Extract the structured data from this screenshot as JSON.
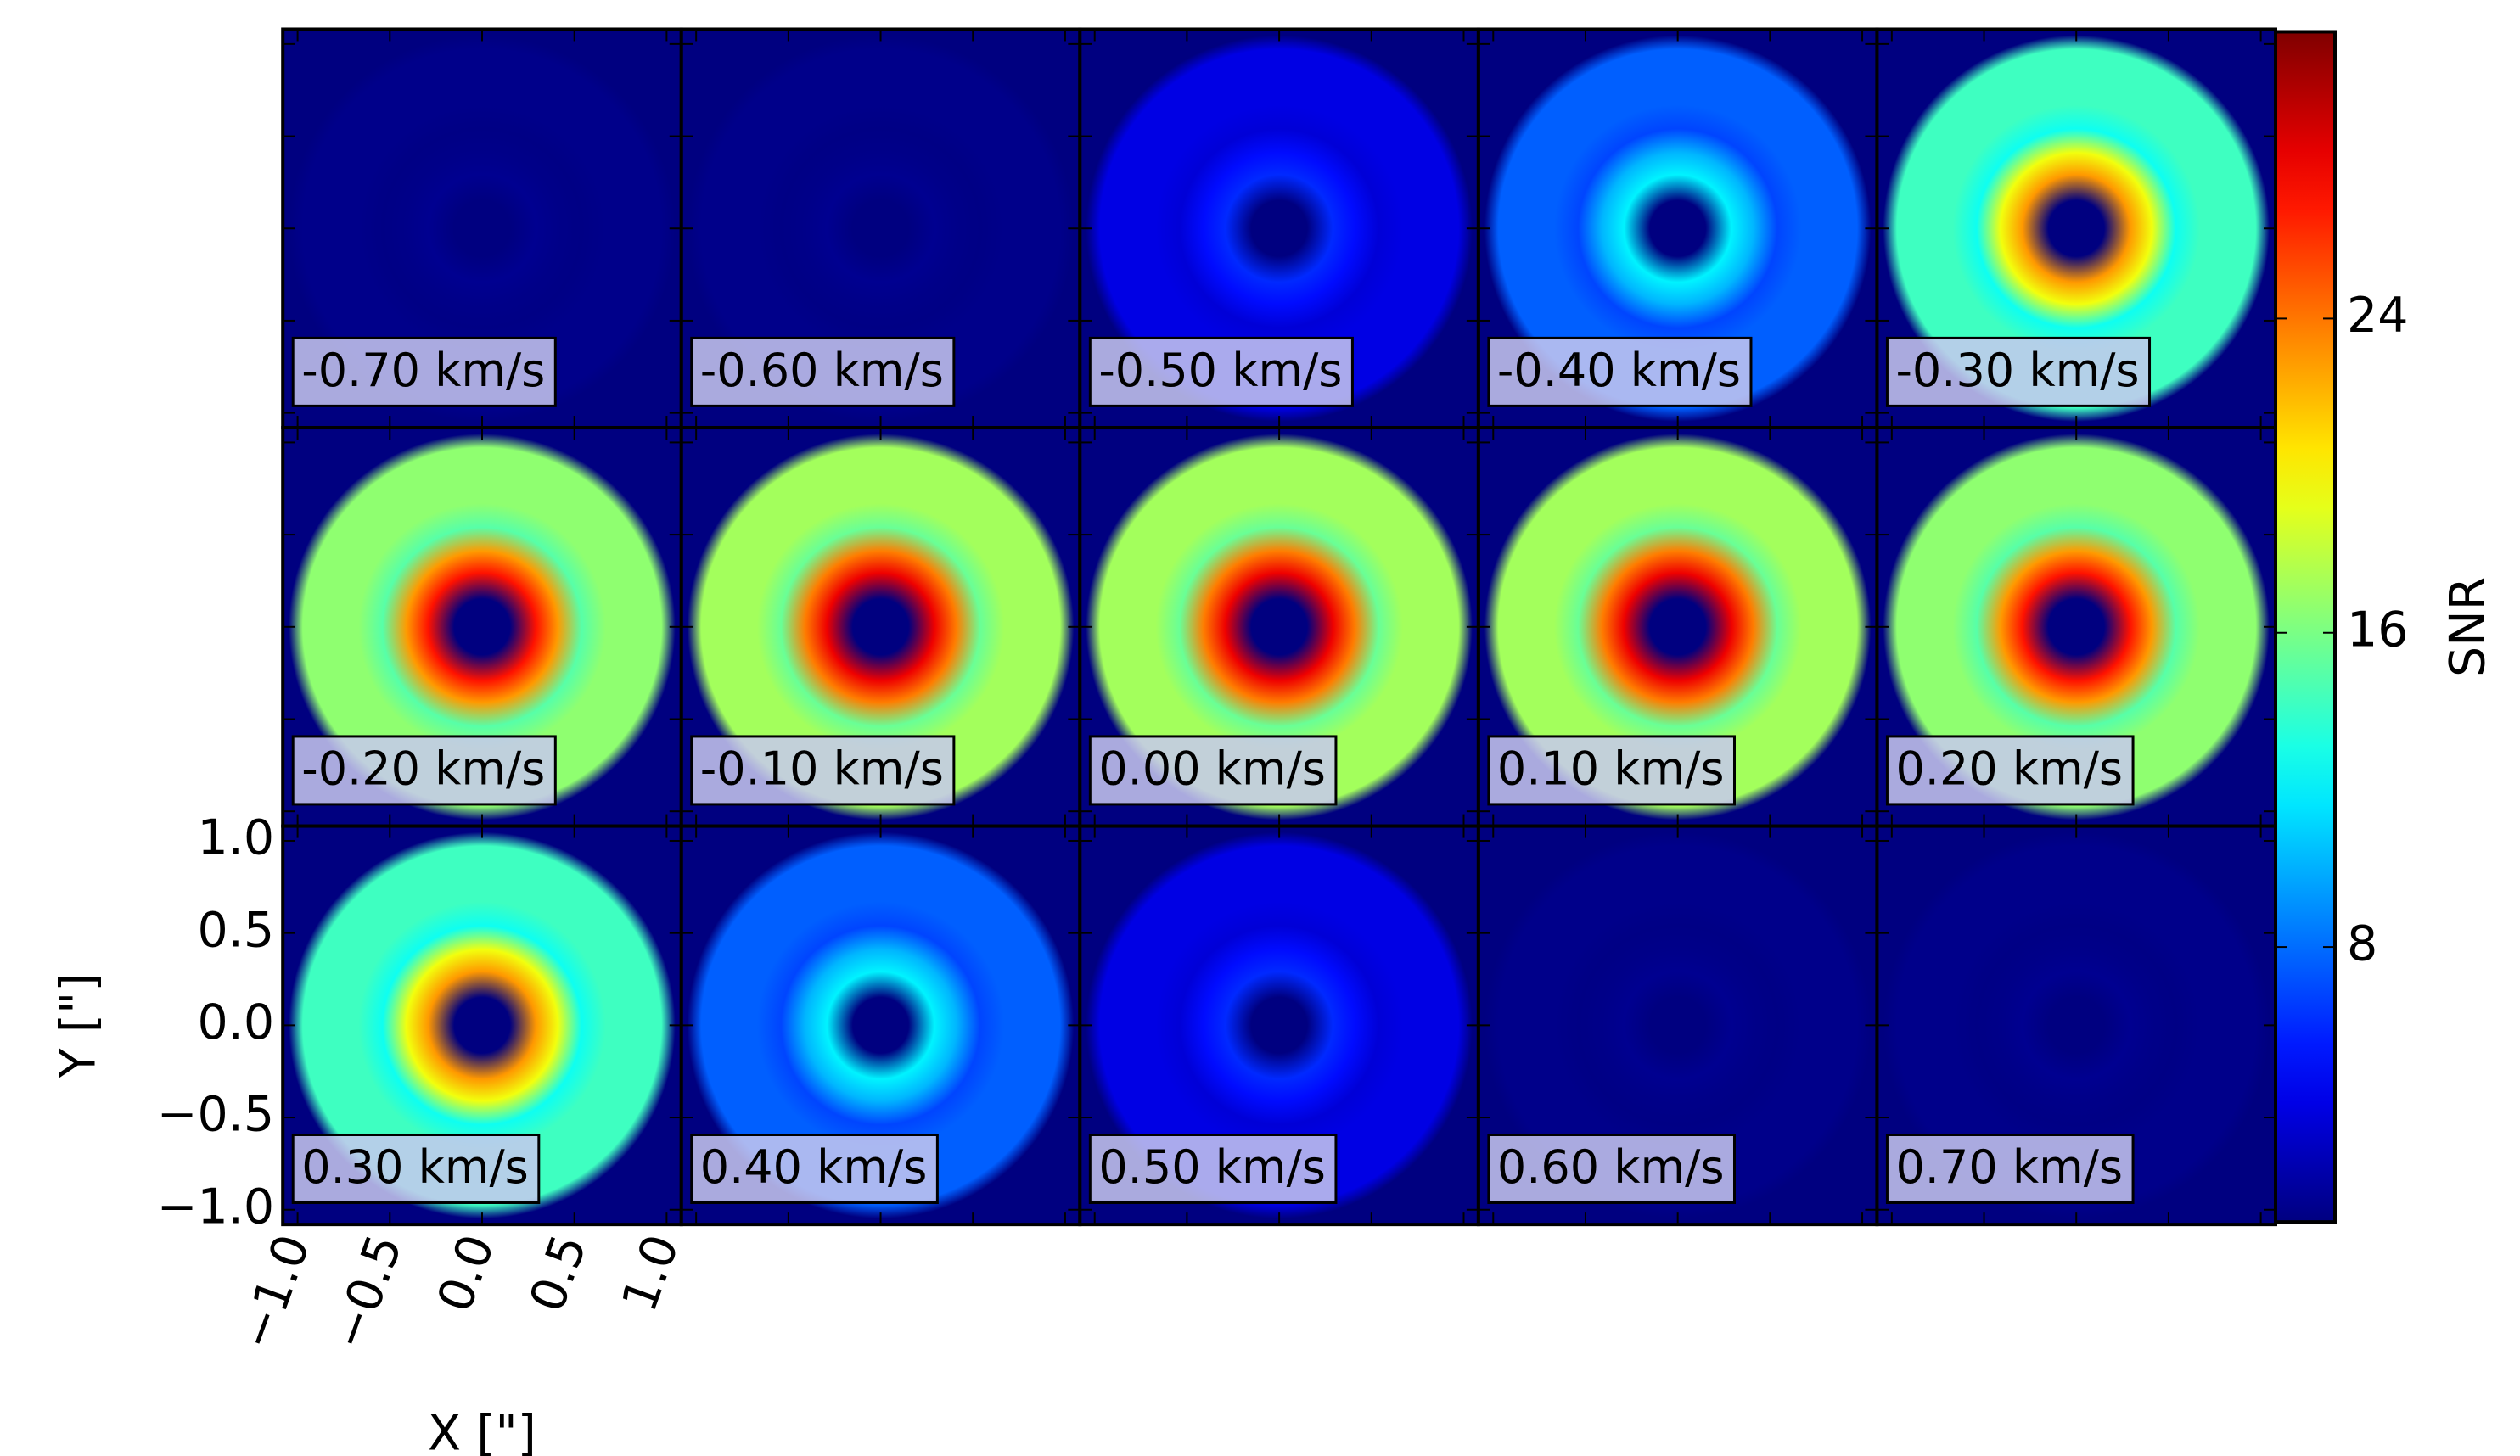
{
  "chart_data": {
    "type": "channel_maps",
    "columns": 5,
    "colormap": "jet",
    "panels": [
      {
        "label": "-0.70 km/s",
        "peak": 1.5
      },
      {
        "label": "-0.60 km/s",
        "peak": 1.5
      },
      {
        "label": "-0.50 km/s",
        "peak": 6
      },
      {
        "label": "-0.40 km/s",
        "peak": 12
      },
      {
        "label": "-0.30 km/s",
        "peak": 23
      },
      {
        "label": "-0.20 km/s",
        "peak": 27
      },
      {
        "label": "-0.10 km/s",
        "peak": 28
      },
      {
        "label": "0.00 km/s",
        "peak": 28
      },
      {
        "label": "0.10 km/s",
        "peak": 28
      },
      {
        "label": "0.20 km/s",
        "peak": 27
      },
      {
        "label": "0.30 km/s",
        "peak": 23
      },
      {
        "label": "0.40 km/s",
        "peak": 12
      },
      {
        "label": "0.50 km/s",
        "peak": 6
      },
      {
        "label": "0.60 km/s",
        "peak": 1.5
      },
      {
        "label": "0.70 km/s",
        "peak": 1.5
      }
    ],
    "x_label": "X [\"]",
    "y_label": "Y [\"]",
    "xlim": [
      -1.08,
      1.08
    ],
    "ylim": [
      -1.08,
      1.08
    ],
    "xticks": [
      {
        "value": -1,
        "label": "−1.0"
      },
      {
        "value": -0.5,
        "label": "−0.5"
      },
      {
        "value": 0,
        "label": "0.0"
      },
      0.5,
      {
        "value": 1,
        "label": "1.0"
      }
    ],
    "yticks": [
      {
        "value": -1,
        "label": "−1.0"
      },
      {
        "value": -0.5,
        "label": "−0.5"
      },
      {
        "value": 0,
        "label": "0.0"
      },
      0.5,
      {
        "value": 1,
        "label": "1.0"
      }
    ],
    "colorbar": {
      "label": "SNR",
      "lim": [
        1,
        31.3
      ],
      "ticks": [
        8,
        16,
        24
      ]
    }
  }
}
